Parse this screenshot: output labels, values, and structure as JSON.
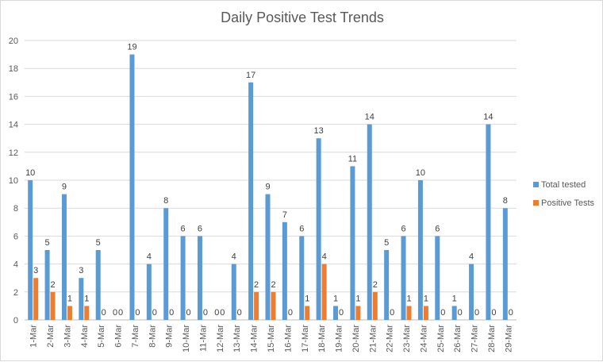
{
  "chart_data": {
    "type": "bar",
    "title": "Daily Positive Test Trends",
    "xlabel": "",
    "ylabel": "",
    "ylim": [
      0,
      20
    ],
    "yticks": [
      0,
      2,
      4,
      6,
      8,
      10,
      12,
      14,
      16,
      18,
      20
    ],
    "grid": true,
    "legend_position": "right",
    "categories": [
      "1-Mar",
      "2-Mar",
      "3-Mar",
      "4-Mar",
      "5-Mar",
      "6-Mar",
      "7-Mar",
      "8-Mar",
      "9-Mar",
      "10-Mar",
      "11-Mar",
      "12-Mar",
      "13-Mar",
      "14-Mar",
      "15-Mar",
      "16-Mar",
      "17-Mar",
      "18-Mar",
      "19-Mar",
      "20-Mar",
      "21-Mar",
      "22-Mar",
      "23-Mar",
      "24-Mar",
      "25-Mar",
      "26-Mar",
      "27-Mar",
      "28-Mar",
      "29-Mar"
    ],
    "series": [
      {
        "name": "Total tested",
        "color": "#5b9bd5",
        "values": [
          10,
          5,
          9,
          3,
          5,
          0,
          19,
          4,
          8,
          6,
          6,
          0,
          4,
          17,
          9,
          7,
          6,
          13,
          1,
          11,
          14,
          5,
          6,
          10,
          6,
          1,
          4,
          14,
          8
        ]
      },
      {
        "name": "Positive Tests",
        "color": "#ed7d31",
        "values": [
          3,
          2,
          1,
          1,
          0,
          0,
          0,
          0,
          0,
          0,
          0,
          0,
          0,
          2,
          2,
          0,
          1,
          4,
          0,
          1,
          2,
          0,
          1,
          1,
          0,
          0,
          0,
          0,
          0
        ]
      }
    ]
  }
}
